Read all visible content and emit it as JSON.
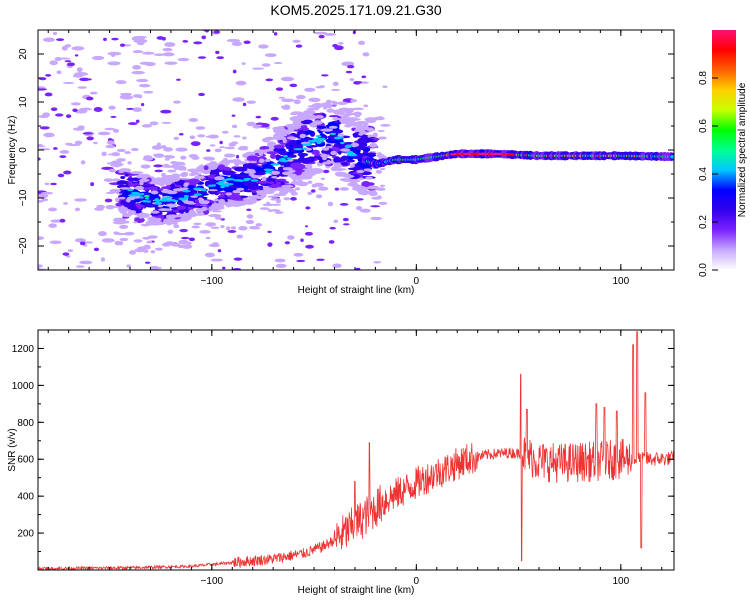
{
  "figure": {
    "title": "KOM5.2025.171.09.21.G30"
  },
  "chart_data": [
    {
      "type": "heatmap",
      "xlabel": "Height of straight line (km)",
      "ylabel": "Frequency (Hz)",
      "xlim": [
        -185,
        126
      ],
      "ylim": [
        -25,
        25
      ],
      "xticks": [
        -100,
        0,
        100
      ],
      "yticks": [
        -20,
        -10,
        0,
        10,
        20
      ],
      "grid": false,
      "colorbar": {
        "label": "Normalized spectral amplitude",
        "range": [
          0,
          1
        ],
        "ticks": [
          0.0,
          0.2,
          0.4,
          0.6,
          0.8
        ],
        "colors": [
          "#ffffff",
          "#c8a8ff",
          "#7a22ff",
          "#3300ee",
          "#0000ff",
          "#00c8ff",
          "#00ff90",
          "#00ff00",
          "#c8ff00",
          "#ffd000",
          "#ff6000",
          "#ff0000",
          "#ff1077"
        ]
      },
      "ridge": [
        {
          "x": -185,
          "f": -2
        },
        {
          "x": -160,
          "f": -5
        },
        {
          "x": -140,
          "f": -9
        },
        {
          "x": -125,
          "f": -11
        },
        {
          "x": -110,
          "f": -9
        },
        {
          "x": -95,
          "f": -7
        },
        {
          "x": -80,
          "f": -6
        },
        {
          "x": -65,
          "f": -2
        },
        {
          "x": -50,
          "f": 2
        },
        {
          "x": -40,
          "f": 3
        },
        {
          "x": -30,
          "f": -1
        },
        {
          "x": -20,
          "f": -3
        },
        {
          "x": -10,
          "f": -2
        },
        {
          "x": 0,
          "f": -2
        },
        {
          "x": 20,
          "f": -0.8
        },
        {
          "x": 40,
          "f": -0.8
        },
        {
          "x": 60,
          "f": -1.2
        },
        {
          "x": 80,
          "f": -1.2
        },
        {
          "x": 100,
          "f": -1.2
        },
        {
          "x": 126,
          "f": -1.4
        }
      ]
    },
    {
      "type": "line",
      "xlabel": "Height of straight line (km)",
      "ylabel": "SNR (v/v)",
      "xlim": [
        -185,
        126
      ],
      "ylim": [
        0,
        1300
      ],
      "xticks": [
        -100,
        0,
        100
      ],
      "yticks": [
        200,
        400,
        600,
        800,
        1000,
        1200
      ],
      "grid": false,
      "series": [
        {
          "color": "#ee3333",
          "envelope": [
            {
              "x": -185,
              "y": 8
            },
            {
              "x": -140,
              "y": 12
            },
            {
              "x": -110,
              "y": 20
            },
            {
              "x": -90,
              "y": 40
            },
            {
              "x": -70,
              "y": 60
            },
            {
              "x": -55,
              "y": 90
            },
            {
              "x": -45,
              "y": 130
            },
            {
              "x": -35,
              "y": 200
            },
            {
              "x": -25,
              "y": 290
            },
            {
              "x": -15,
              "y": 380
            },
            {
              "x": -5,
              "y": 440
            },
            {
              "x": 5,
              "y": 500
            },
            {
              "x": 15,
              "y": 550
            },
            {
              "x": 25,
              "y": 600
            },
            {
              "x": 35,
              "y": 625
            },
            {
              "x": 45,
              "y": 635
            },
            {
              "x": 52,
              "y": 630
            },
            {
              "x": 60,
              "y": 590
            },
            {
              "x": 70,
              "y": 580
            },
            {
              "x": 80,
              "y": 585
            },
            {
              "x": 90,
              "y": 590
            },
            {
              "x": 100,
              "y": 600
            },
            {
              "x": 108,
              "y": 600
            },
            {
              "x": 115,
              "y": 600
            },
            {
              "x": 126,
              "y": 605
            }
          ],
          "spikes": [
            {
              "x": -23,
              "y": 690
            },
            {
              "x": -30,
              "y": 480
            },
            {
              "x": 51,
              "y": 1060
            },
            {
              "x": 51.5,
              "y": 50
            },
            {
              "x": 54,
              "y": 870
            },
            {
              "x": 88,
              "y": 900
            },
            {
              "x": 92,
              "y": 880
            },
            {
              "x": 98,
              "y": 860
            },
            {
              "x": 106,
              "y": 1220
            },
            {
              "x": 108,
              "y": 1290
            },
            {
              "x": 110,
              "y": 120
            },
            {
              "x": 112,
              "y": 960
            }
          ]
        }
      ]
    }
  ]
}
